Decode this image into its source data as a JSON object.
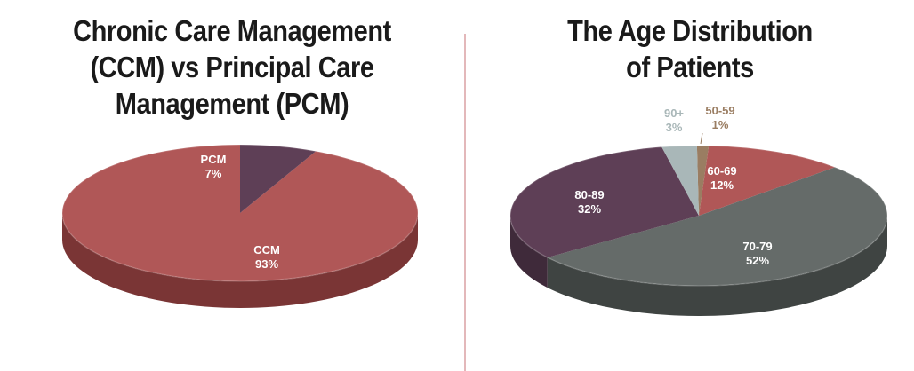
{
  "charts": [
    {
      "title_lines": [
        "Chronic Care Management",
        "(CCM) vs Principal Care",
        "Management (PCM)"
      ]
    },
    {
      "title_lines": [
        "The Age Distribution",
        "of Patients"
      ]
    }
  ],
  "chart_data": [
    {
      "type": "pie",
      "title": "Chronic Care Management (CCM) vs Principal Care Management (PCM)",
      "slices": [
        {
          "label": "CCM",
          "value": 93,
          "display": "93%",
          "color": "#b05757",
          "side": "#7a3535",
          "text_color": "#ffffff"
        },
        {
          "label": "PCM",
          "value": 7,
          "display": "7%",
          "color": "#5e3f56",
          "side": "#3f2a3a",
          "text_color": "#ffffff"
        }
      ]
    },
    {
      "type": "pie",
      "title": "The Age Distribution of Patients",
      "slices": [
        {
          "label": "50-59",
          "value": 1,
          "display": "1%",
          "color": "#9a7d62",
          "side": "#6e5845",
          "text_color": "#9a7d62"
        },
        {
          "label": "60-69",
          "value": 12,
          "display": "12%",
          "color": "#b05757",
          "side": "#7a3535",
          "text_color": "#ffffff"
        },
        {
          "label": "70-79",
          "value": 52,
          "display": "52%",
          "color": "#656b69",
          "side": "#3f4442",
          "text_color": "#ffffff"
        },
        {
          "label": "80-89",
          "value": 32,
          "display": "32%",
          "color": "#5e3f56",
          "side": "#3f2a3a",
          "text_color": "#ffffff"
        },
        {
          "label": "90+",
          "value": 3,
          "display": "3%",
          "color": "#a9b7b8",
          "side": "#7c8889",
          "text_color": "#a9b7b8"
        }
      ]
    }
  ]
}
